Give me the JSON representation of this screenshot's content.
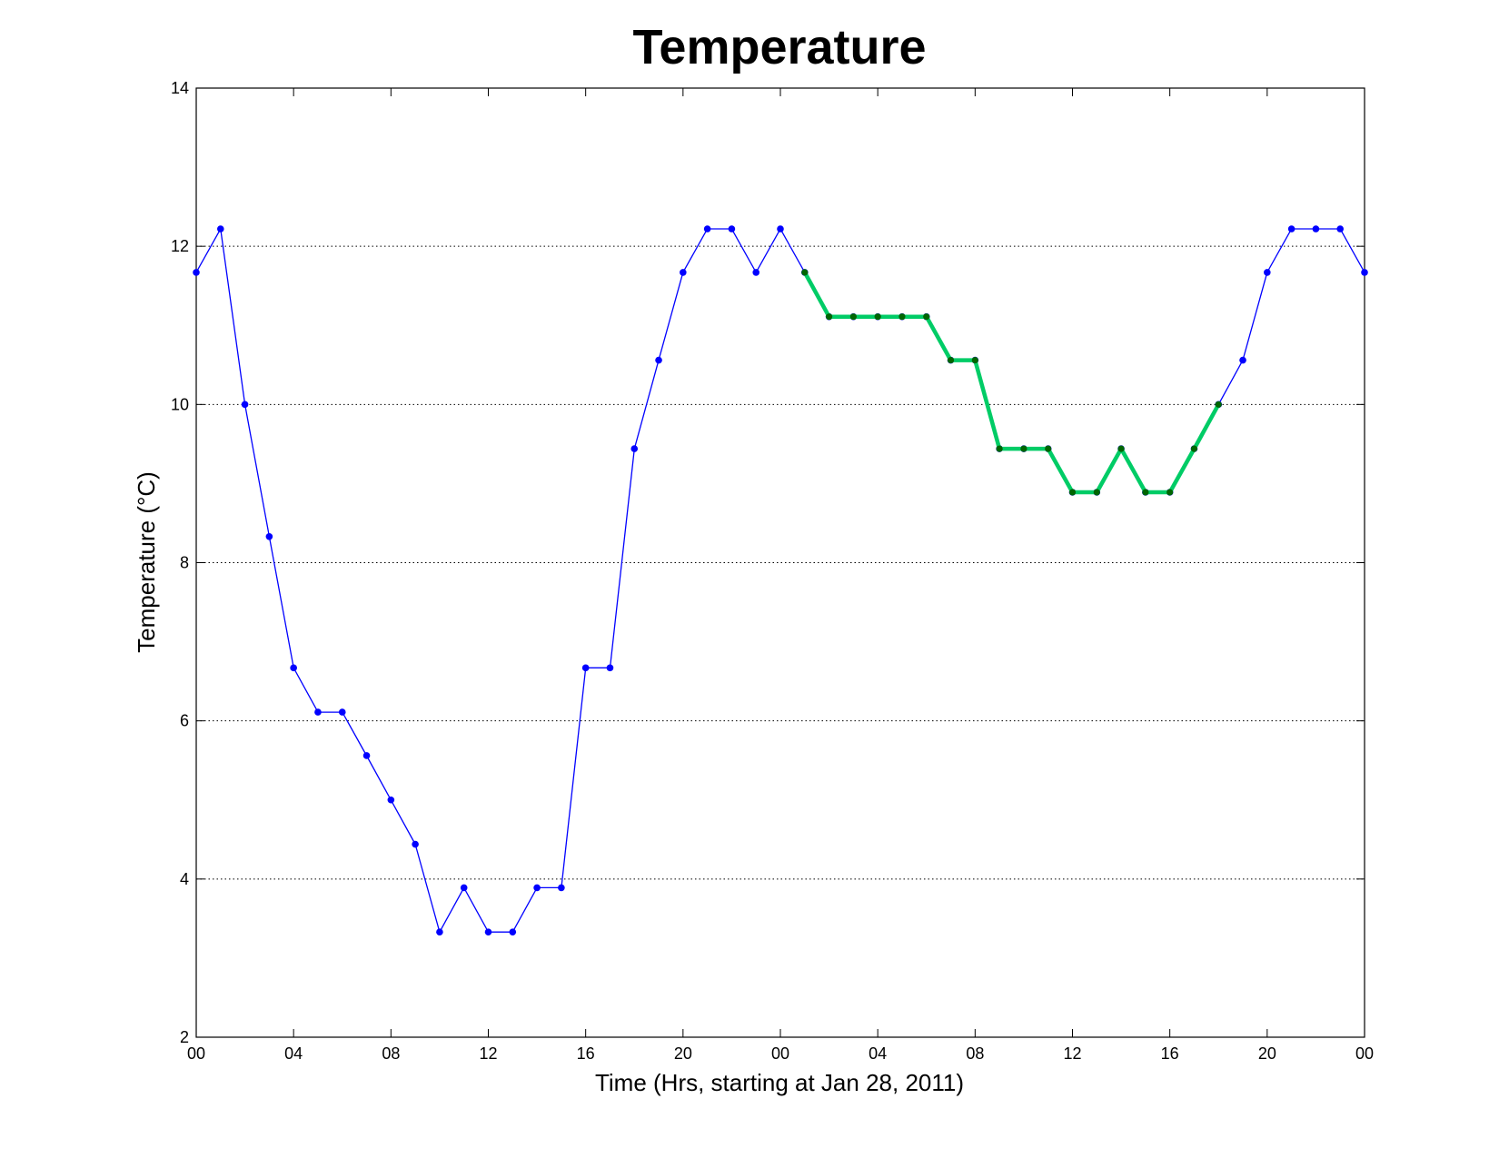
{
  "chart_data": {
    "type": "line",
    "title": "Temperature",
    "xlabel": "Time (Hrs, starting at Jan 28, 2011)",
    "ylabel": "Temperature (°C)",
    "x_unit": "hours",
    "xlim": [
      0,
      48
    ],
    "ylim": [
      2,
      14
    ],
    "x_ticks": [
      0,
      4,
      8,
      12,
      16,
      20,
      24,
      28,
      32,
      36,
      40,
      44,
      48
    ],
    "x_tick_labels": [
      "00",
      "04",
      "08",
      "12",
      "16",
      "20",
      "00",
      "04",
      "08",
      "12",
      "16",
      "20",
      "00"
    ],
    "y_ticks": [
      2,
      4,
      6,
      8,
      10,
      12,
      14
    ],
    "y_tick_labels": [
      "2",
      "4",
      "6",
      "8",
      "10",
      "12",
      "14"
    ],
    "grid": "horizontal dotted",
    "series": [
      {
        "color": "#0000ff",
        "marker_color": "#0000ff",
        "line_width": "thin",
        "x": [
          0,
          1,
          2,
          3,
          4,
          5,
          6,
          7,
          8,
          9,
          10,
          11,
          12,
          13,
          14,
          15,
          16,
          17,
          18,
          19,
          20,
          21,
          22,
          23,
          24,
          25,
          26,
          27,
          28,
          29,
          30,
          31,
          32,
          33,
          34,
          35,
          36,
          37,
          38,
          39,
          40,
          41,
          42,
          43,
          44,
          45,
          46,
          47,
          48
        ],
        "values": [
          11.67,
          12.22,
          10.0,
          8.33,
          6.67,
          6.11,
          6.11,
          5.56,
          5.0,
          4.44,
          3.33,
          3.89,
          3.33,
          3.33,
          3.89,
          3.89,
          6.67,
          6.67,
          9.44,
          10.56,
          11.67,
          12.22,
          12.22,
          11.67,
          12.22,
          11.67,
          11.11,
          11.11,
          11.11,
          11.11,
          11.11,
          10.56,
          10.56,
          9.44,
          9.44,
          9.44,
          8.89,
          8.89,
          9.44,
          8.89,
          8.89,
          9.44,
          10.0,
          10.56,
          11.67,
          12.22,
          12.22,
          12.22,
          11.67
        ]
      },
      {
        "color": "#00cc66",
        "marker_color": "#006600",
        "line_width": "thick",
        "x": [
          25,
          26,
          27,
          28,
          29,
          30,
          31,
          32,
          33,
          34,
          35,
          36,
          37,
          38,
          39,
          40,
          41,
          42
        ],
        "values": [
          11.67,
          11.11,
          11.11,
          11.11,
          11.11,
          11.11,
          10.56,
          10.56,
          9.44,
          9.44,
          9.44,
          8.89,
          8.89,
          9.44,
          8.89,
          8.89,
          9.44,
          10.0
        ]
      }
    ]
  }
}
